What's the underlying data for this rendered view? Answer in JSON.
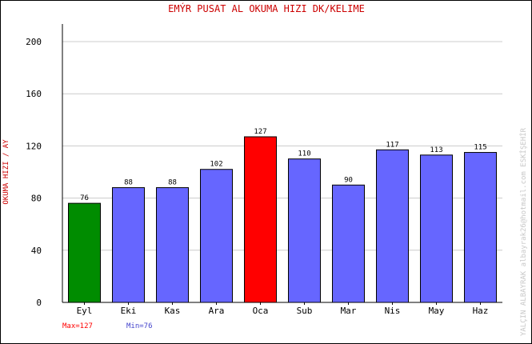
{
  "chart_data": {
    "type": "bar",
    "title": "EMÝR PUSAT AL   OKUMA HIZI  DK/KELIME",
    "xlabel": "",
    "ylabel": "OKUMA HIZI / AY",
    "categories": [
      "Eyl",
      "Eki",
      "Kas",
      "Ara",
      "Oca",
      "Sub",
      "Mar",
      "Nis",
      "May",
      "Haz"
    ],
    "values": [
      76,
      88,
      88,
      102,
      127,
      110,
      90,
      117,
      113,
      115
    ],
    "ylim": [
      0,
      215
    ],
    "yticks": [
      0,
      40,
      80,
      120,
      160,
      200
    ],
    "grid": true,
    "colors": {
      "default": "#6666ff",
      "max": "#ff0000",
      "min": "#008c00",
      "title": "#cc0000",
      "ylabel": "#cc0000",
      "max_label": "#ff0000",
      "min_label": "#4444cc",
      "watermark": "#c8c8c8"
    },
    "max_label": "Max=127",
    "min_label": "Min=76",
    "watermark": "YALÇIN ALBAYRAK   albayrak26@hotmail.com   ESKİŞEHİR"
  }
}
